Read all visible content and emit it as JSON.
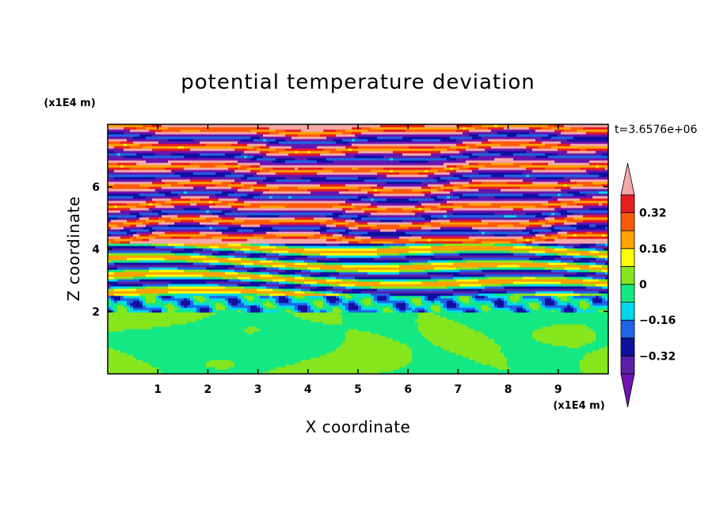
{
  "chart_data": {
    "type": "heatmap",
    "title": "potential temperature deviation",
    "xlabel": "X coordinate",
    "ylabel": "Z coordinate",
    "x_unit": "(x1E4 m)",
    "y_unit": "(x1E4 m)",
    "time_label": "t=3.6576e+06",
    "xlim": [
      0,
      10
    ],
    "ylim": [
      0,
      8
    ],
    "x_ticks": [
      {
        "value": 1,
        "label": "1"
      },
      {
        "value": 2,
        "label": "2"
      },
      {
        "value": 3,
        "label": "3"
      },
      {
        "value": 4,
        "label": "4"
      },
      {
        "value": 5,
        "label": "5"
      },
      {
        "value": 6,
        "label": "6"
      },
      {
        "value": 7,
        "label": "7"
      },
      {
        "value": 8,
        "label": "8"
      },
      {
        "value": 9,
        "label": "9"
      }
    ],
    "y_ticks": [
      {
        "value": 2,
        "label": "2"
      },
      {
        "value": 4,
        "label": "4"
      },
      {
        "value": 6,
        "label": "6"
      }
    ],
    "colorbar": {
      "min": -0.4,
      "max": 0.4,
      "levels": [
        {
          "from": -0.4,
          "to": -0.32,
          "color": "#5b1ea8"
        },
        {
          "from": -0.32,
          "to": -0.24,
          "color": "#1010a0"
        },
        {
          "from": -0.24,
          "to": -0.16,
          "color": "#1e64e6"
        },
        {
          "from": -0.16,
          "to": -0.08,
          "color": "#00d8f0"
        },
        {
          "from": -0.08,
          "to": 0.0,
          "color": "#14e882"
        },
        {
          "from": 0.0,
          "to": 0.08,
          "color": "#86e61e"
        },
        {
          "from": 0.08,
          "to": 0.16,
          "color": "#ffff00"
        },
        {
          "from": 0.16,
          "to": 0.24,
          "color": "#ffa200"
        },
        {
          "from": 0.24,
          "to": 0.32,
          "color": "#ff5a0a"
        },
        {
          "from": 0.32,
          "to": 0.4,
          "color": "#e61e1e"
        }
      ],
      "under_color": "#7011b0",
      "over_color": "#f5a8a8",
      "tick_labels": [
        {
          "value": 0.32,
          "label": "0.32"
        },
        {
          "value": 0.16,
          "label": "0.16"
        },
        {
          "value": 0,
          "label": "0"
        },
        {
          "value": -0.16,
          "label": "−0.16"
        },
        {
          "value": -0.32,
          "label": "−0.32"
        }
      ]
    },
    "layers": [
      {
        "z_from": 0.0,
        "z_to": 2.0,
        "description_value": 0.02
      },
      {
        "z_from": 2.0,
        "z_to": 2.5,
        "description_value": -0.05
      },
      {
        "z_from": 2.5,
        "z_to": 4.2,
        "description_value": -0.1
      },
      {
        "z_from": 4.2,
        "z_to": 8.0,
        "description_value": 0.0
      }
    ],
    "stripes_upper": [
      {
        "z": 4.35,
        "value": 0.45
      },
      {
        "z": 4.6,
        "value": -0.45
      },
      {
        "z": 4.85,
        "value": 0.45
      },
      {
        "z": 5.1,
        "value": -0.45
      },
      {
        "z": 5.4,
        "value": 0.45
      },
      {
        "z": 5.7,
        "value": -0.45
      },
      {
        "z": 6.0,
        "value": 0.45
      },
      {
        "z": 6.3,
        "value": -0.45
      },
      {
        "z": 6.6,
        "value": 0.45
      },
      {
        "z": 6.95,
        "value": -0.45
      },
      {
        "z": 7.25,
        "value": 0.45
      },
      {
        "z": 7.55,
        "value": -0.45
      },
      {
        "z": 7.85,
        "value": 0.45
      }
    ]
  }
}
